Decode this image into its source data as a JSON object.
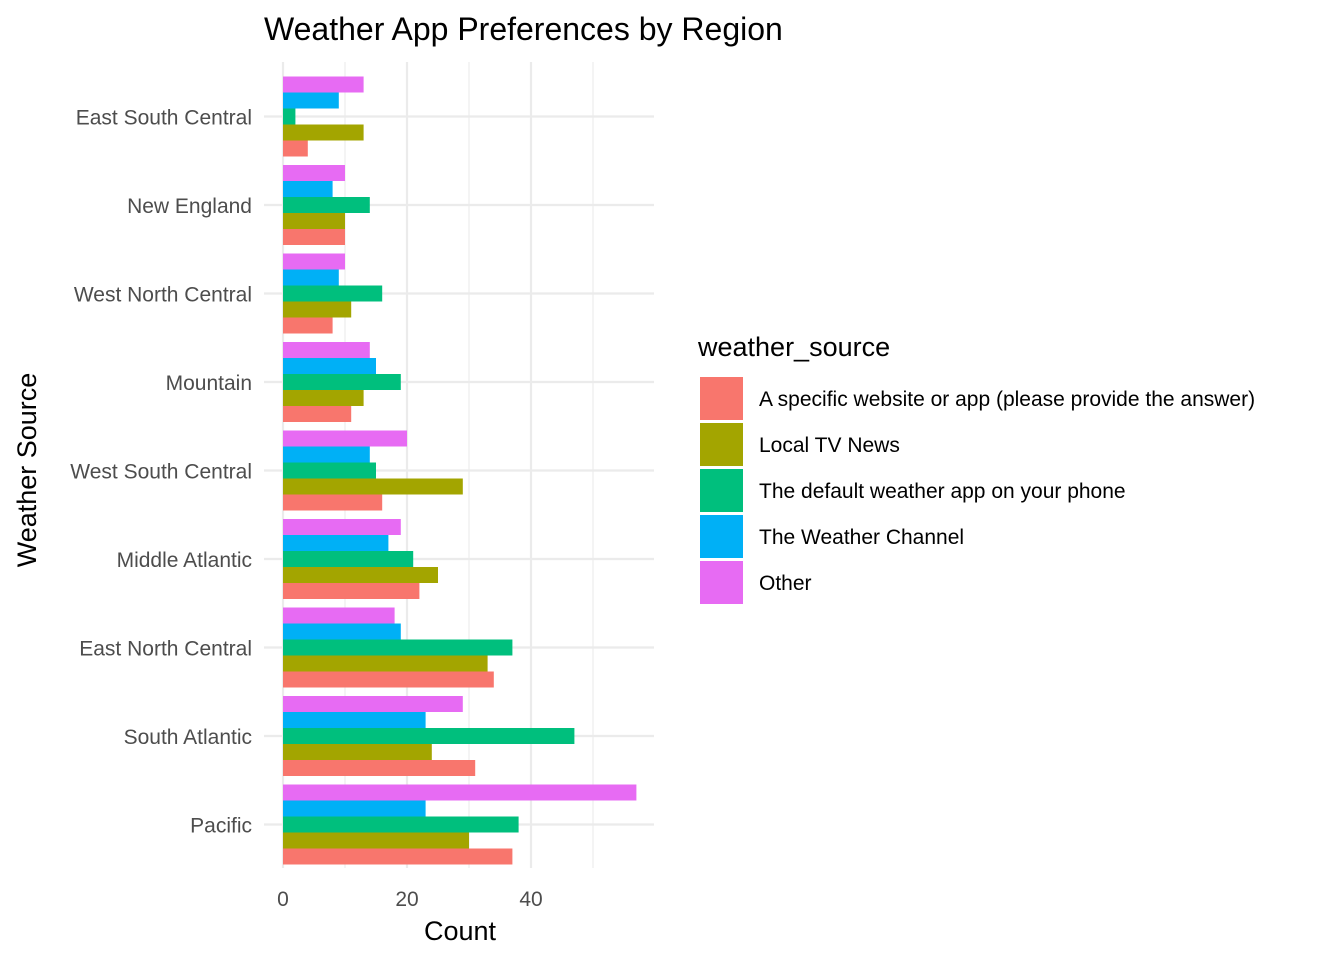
{
  "chart_data": {
    "type": "bar",
    "orientation": "horizontal",
    "title": "Weather App Preferences by Region",
    "xlabel": "Count",
    "ylabel": "Weather Source",
    "xlim": [
      0,
      60
    ],
    "x_ticks": [
      "0",
      "20",
      "40"
    ],
    "grid": true,
    "legend_title": "weather_source",
    "legend_position": "right",
    "categories": [
      "East South Central",
      "New England",
      "West North Central",
      "Mountain",
      "West South Central",
      "Middle Atlantic",
      "East North Central",
      "South Atlantic",
      "Pacific"
    ],
    "series": [
      {
        "name": "A specific website or app (please provide the answer)",
        "color": "#F8766D",
        "values": [
          4,
          10,
          8,
          11,
          16,
          22,
          34,
          31,
          37
        ]
      },
      {
        "name": "Local TV News",
        "color": "#A3A500",
        "values": [
          13,
          10,
          11,
          13,
          29,
          25,
          33,
          24,
          30
        ]
      },
      {
        "name": "The default weather app on your phone",
        "color": "#00BF7D",
        "values": [
          2,
          14,
          16,
          19,
          15,
          21,
          37,
          47,
          38
        ]
      },
      {
        "name": "The Weather Channel",
        "color": "#00B0F6",
        "values": [
          9,
          8,
          9,
          15,
          14,
          17,
          19,
          23,
          23
        ]
      },
      {
        "name": "Other",
        "color": "#E76BF3",
        "values": [
          13,
          10,
          10,
          14,
          20,
          19,
          18,
          29,
          57
        ]
      }
    ]
  }
}
